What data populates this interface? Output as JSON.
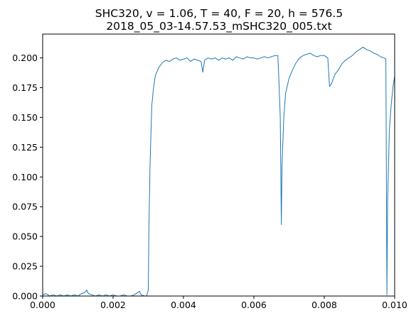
{
  "chart_data": {
    "type": "line",
    "title_line1": "SHC320, v = 1.06, T = 40, F = 20, h = 576.5",
    "title_line2": "2018_05_03-14.57.53_mSHC320_005.txt",
    "xlabel": "",
    "ylabel": "",
    "xlim": [
      0,
      0.01
    ],
    "ylim": [
      0,
      0.22
    ],
    "x_ticks": [
      0.0,
      0.002,
      0.004,
      0.006,
      0.008,
      0.01
    ],
    "x_tick_labels": [
      "0.000",
      "0.002",
      "0.004",
      "0.006",
      "0.008",
      "0.010"
    ],
    "y_ticks": [
      0.0,
      0.025,
      0.05,
      0.075,
      0.1,
      0.125,
      0.15,
      0.175,
      0.2
    ],
    "y_tick_labels": [
      "0.000",
      "0.025",
      "0.050",
      "0.075",
      "0.100",
      "0.125",
      "0.150",
      "0.175",
      "0.200"
    ],
    "grid": false,
    "line_color": "#1f77b4",
    "series": [
      {
        "x": [
          0.0,
          0.0001,
          0.0002,
          0.0003,
          0.0004,
          0.0005,
          0.0006,
          0.0007,
          0.0008,
          0.0009,
          0.001,
          0.0011,
          0.0012,
          0.00125,
          0.0013,
          0.0014,
          0.0015,
          0.0016,
          0.0017,
          0.0018,
          0.0019,
          0.002,
          0.0021,
          0.0022,
          0.0023,
          0.0024,
          0.0025,
          0.0026,
          0.0027,
          0.00275,
          0.0028,
          0.0029,
          0.00295,
          0.003,
          0.00302,
          0.00305,
          0.0031,
          0.00315,
          0.0032,
          0.0033,
          0.0034,
          0.0035,
          0.0036,
          0.0037,
          0.0038,
          0.0039,
          0.004,
          0.0041,
          0.0042,
          0.0043,
          0.0044,
          0.0045,
          0.00455,
          0.0046,
          0.0047,
          0.0048,
          0.0049,
          0.005,
          0.0051,
          0.0052,
          0.0053,
          0.0054,
          0.0055,
          0.0056,
          0.0057,
          0.0058,
          0.0059,
          0.006,
          0.0061,
          0.0062,
          0.0063,
          0.0064,
          0.0065,
          0.0066,
          0.00668,
          0.0067,
          0.00675,
          0.00678,
          0.0068,
          0.00685,
          0.0069,
          0.007,
          0.0071,
          0.0072,
          0.0073,
          0.0074,
          0.0075,
          0.0076,
          0.0077,
          0.0078,
          0.0079,
          0.008,
          0.0081,
          0.00815,
          0.0082,
          0.0083,
          0.0084,
          0.0085,
          0.0086,
          0.0087,
          0.0088,
          0.0089,
          0.009,
          0.0091,
          0.0092,
          0.0093,
          0.0094,
          0.0095,
          0.0096,
          0.0097,
          0.00975,
          0.00978,
          0.0098,
          0.00985,
          0.0099,
          0.00995,
          0.01
        ],
        "y": [
          0.001,
          0.002,
          0.0,
          0.001,
          0.0,
          0.001,
          0.0,
          0.001,
          0.0,
          0.001,
          0.0,
          0.002,
          0.003,
          0.005,
          0.002,
          0.001,
          0.0,
          0.001,
          0.0,
          0.001,
          0.0,
          0.001,
          0.0,
          0.0,
          0.001,
          0.0,
          0.0,
          0.001,
          0.003,
          0.004,
          0.001,
          0.0,
          0.0,
          0.005,
          0.06,
          0.11,
          0.16,
          0.175,
          0.185,
          0.192,
          0.196,
          0.198,
          0.197,
          0.199,
          0.2,
          0.198,
          0.199,
          0.2,
          0.197,
          0.199,
          0.198,
          0.197,
          0.188,
          0.198,
          0.2,
          0.199,
          0.2,
          0.198,
          0.2,
          0.199,
          0.2,
          0.198,
          0.201,
          0.2,
          0.199,
          0.201,
          0.2,
          0.2,
          0.199,
          0.2,
          0.201,
          0.2,
          0.201,
          0.202,
          0.202,
          0.19,
          0.15,
          0.06,
          0.11,
          0.15,
          0.17,
          0.183,
          0.19,
          0.196,
          0.2,
          0.202,
          0.203,
          0.204,
          0.202,
          0.201,
          0.202,
          0.202,
          0.2,
          0.176,
          0.178,
          0.186,
          0.19,
          0.195,
          0.198,
          0.2,
          0.202,
          0.205,
          0.207,
          0.209,
          0.207,
          0.206,
          0.204,
          0.203,
          0.201,
          0.2,
          0.199,
          0.001,
          0.08,
          0.14,
          0.16,
          0.175,
          0.185
        ]
      }
    ]
  }
}
